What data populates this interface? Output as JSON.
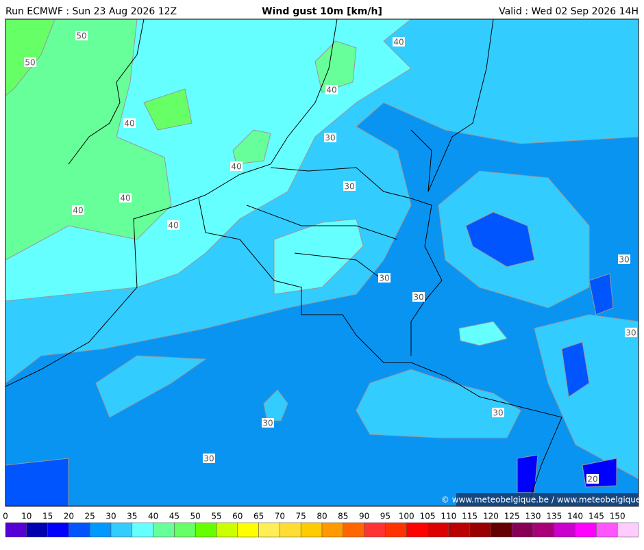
{
  "header": {
    "run": "Run ECMWF : Sun 23 Aug 2026 12Z",
    "title": "Wind gust 10m [km/h]",
    "valid": "Valid : Wed 02 Sep 2026 14H"
  },
  "map": {
    "contour_labels": [
      "50",
      "50",
      "40",
      "40",
      "40",
      "30",
      "40",
      "30",
      "40",
      "40",
      "40",
      "30",
      "30",
      "30",
      "30",
      "30",
      "30",
      "30",
      "20"
    ],
    "credit": "© www.meteobelgique.be / www.meteobelgique.be"
  },
  "legend": {
    "labels": [
      0,
      10,
      15,
      20,
      25,
      30,
      35,
      40,
      45,
      50,
      55,
      60,
      65,
      70,
      75,
      80,
      85,
      90,
      95,
      100,
      105,
      110,
      115,
      120,
      125,
      130,
      135,
      140,
      145,
      150
    ],
    "colors": [
      "#5500d4",
      "#0000b0",
      "#0000ff",
      "#0055ff",
      "#0099ff",
      "#33ccff",
      "#66ffff",
      "#66ff99",
      "#66ff66",
      "#66ff00",
      "#ccff00",
      "#ffff00",
      "#ffee55",
      "#ffdd33",
      "#ffcc00",
      "#ff9900",
      "#ff6600",
      "#ff3333",
      "#ff3300",
      "#ff0000",
      "#dd0000",
      "#bb0000",
      "#990000",
      "#660000",
      "#880055",
      "#aa0077",
      "#cc00cc",
      "#ff00ff",
      "#ff55ff",
      "#ffccff"
    ]
  }
}
